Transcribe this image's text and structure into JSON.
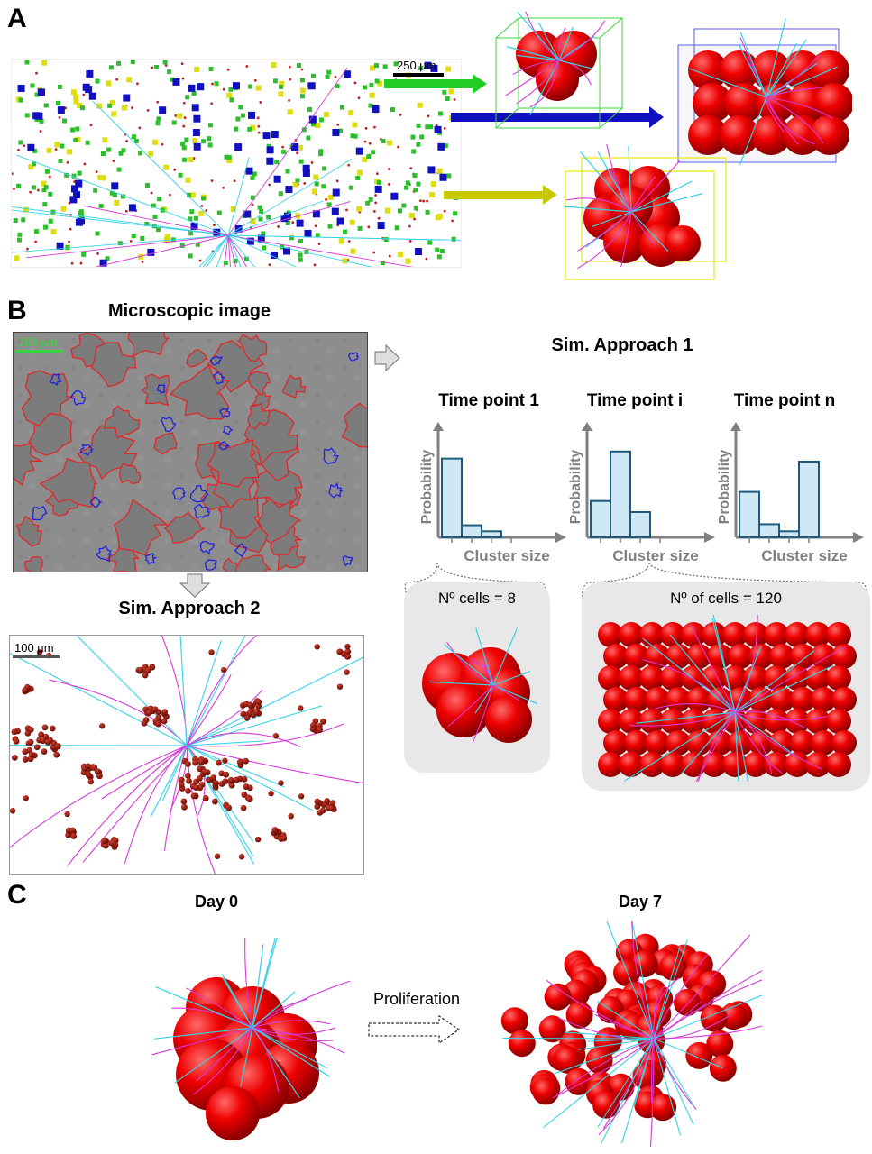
{
  "panels": {
    "a": {
      "letter": "A",
      "scale_bar": "250 µm"
    },
    "b": {
      "letter": "B",
      "microscopic_title": "Microscopic image",
      "scale_bar_micro": "100 µm",
      "sim2_title": "Sim. Approach 2",
      "scale_bar_sim2": "100 µm",
      "sim1_title": "Sim. Approach 1",
      "histograms": [
        {
          "title": "Time point 1",
          "ylabel": "Probability",
          "xlabel": "Cluster size",
          "values": [
            0.78,
            0.12,
            0.06,
            0.0
          ]
        },
        {
          "title": "Time point i",
          "ylabel": "Probability",
          "xlabel": "Cluster size",
          "values": [
            0.36,
            0.85,
            0.25,
            0.0
          ]
        },
        {
          "title": "Time point n",
          "ylabel": "Probability",
          "xlabel": "Cluster size",
          "values": [
            0.45,
            0.13,
            0.06,
            0.75
          ]
        }
      ],
      "cluster_small_label": "Nº cells = 8",
      "cluster_large_label": "Nº of cells = 120"
    },
    "c": {
      "letter": "C",
      "day0_title": "Day 0",
      "day7_title": "Day 7",
      "arrow_label": "Proliferation"
    }
  },
  "colors": {
    "sphere_red": "#e00000",
    "fiber_cyan": "#35d3e6",
    "fiber_magenta": "#d63ad6",
    "cell_green": "#2bbf2b",
    "cell_blue": "#1010c0",
    "cell_yellow": "#dddd10",
    "bar_fill": "#cfe8f6",
    "bar_edge": "#1f5a7a",
    "axis_gray": "#808080"
  }
}
